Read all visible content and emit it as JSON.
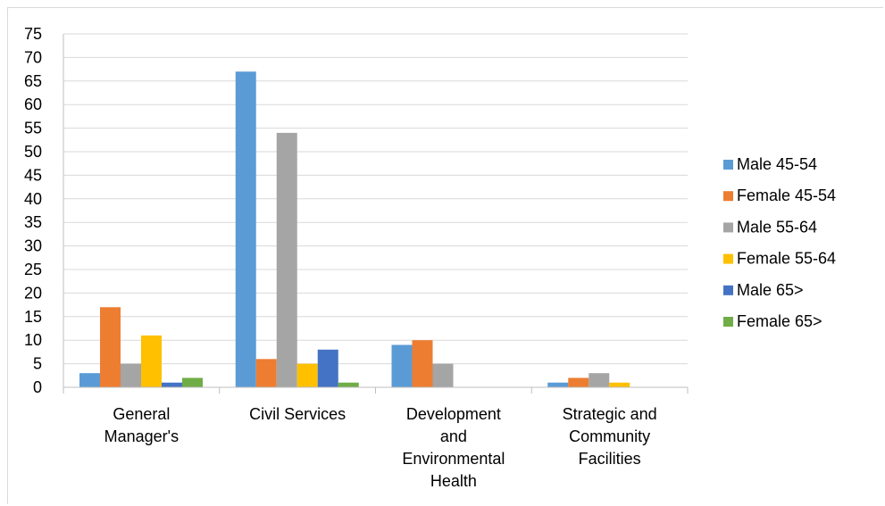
{
  "chart_data": {
    "type": "bar",
    "title": "",
    "xlabel": "",
    "ylabel": "",
    "ylim": [
      0,
      75
    ],
    "yticks": [
      0,
      5,
      10,
      15,
      20,
      25,
      30,
      35,
      40,
      45,
      50,
      55,
      60,
      65,
      70,
      75
    ],
    "grid": true,
    "legend_position": "right",
    "categories": [
      "General Manager's",
      "Civil Services",
      "Development and Environmental Health",
      "Strategic and Community Facilities"
    ],
    "category_label_lines": [
      [
        "General",
        "Manager's"
      ],
      [
        "Civil Services"
      ],
      [
        "Development",
        "and",
        "Environmental",
        "Health"
      ],
      [
        "Strategic and",
        "Community",
        "Facilities"
      ]
    ],
    "series": [
      {
        "name": "Male 45-54",
        "color": "#5B9BD5",
        "values": [
          3,
          67,
          9,
          1
        ]
      },
      {
        "name": "Female 45-54",
        "color": "#ED7D31",
        "values": [
          17,
          6,
          10,
          2
        ]
      },
      {
        "name": "Male 55-64",
        "color": "#A5A5A5",
        "values": [
          5,
          54,
          5,
          3
        ]
      },
      {
        "name": "Female 55-64",
        "color": "#FFC000",
        "values": [
          11,
          5,
          0,
          1
        ]
      },
      {
        "name": "Male 65>",
        "color": "#4472C4",
        "values": [
          1,
          8,
          0,
          0
        ]
      },
      {
        "name": "Female 65>",
        "color": "#70AD47",
        "values": [
          2,
          1,
          0,
          0
        ]
      }
    ]
  }
}
